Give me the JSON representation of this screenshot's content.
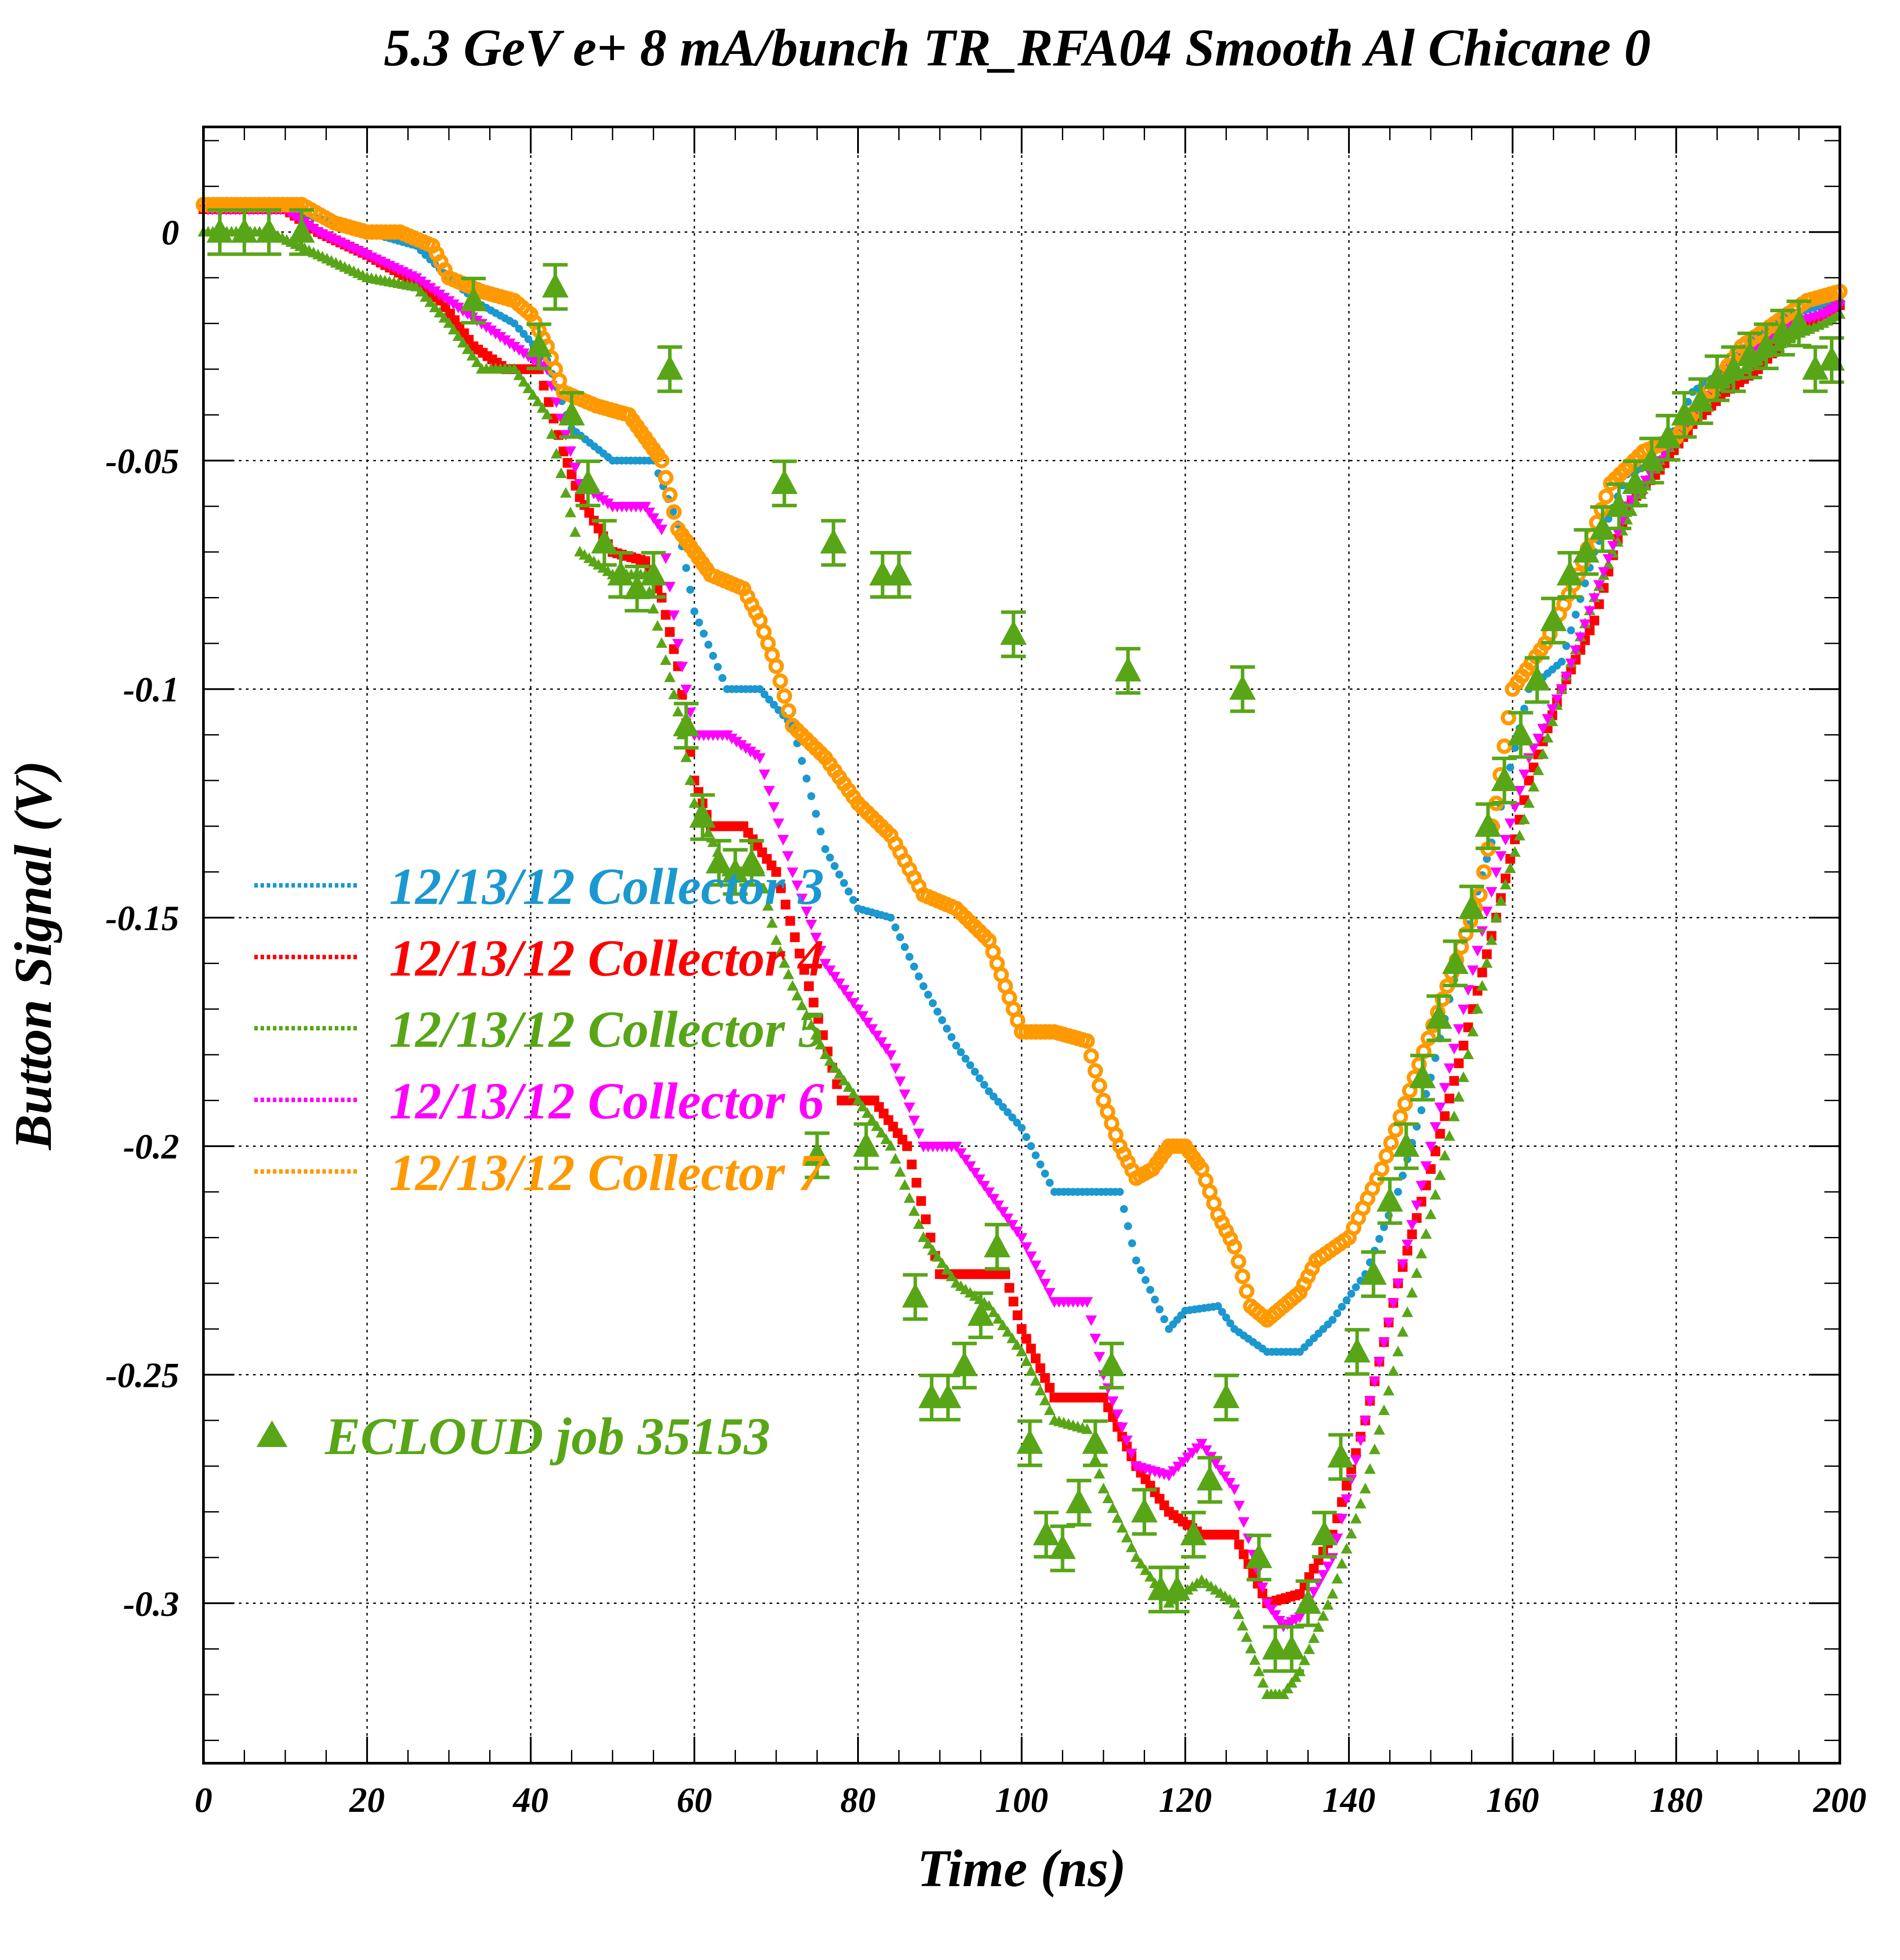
{
  "chart_data": {
    "type": "scatter",
    "title": "5.3 GeV e+ 8 mA/bunch  TR_RFA04 Smooth Al Chicane 0",
    "xlabel": "Time (ns)",
    "ylabel": "Button Signal (V)",
    "xlim": [
      0,
      200
    ],
    "ylim": [
      -0.335,
      0.023
    ],
    "x_ticks": [
      "0",
      "20",
      "40",
      "60",
      "80",
      "100",
      "120",
      "140",
      "160",
      "180",
      "200"
    ],
    "y_ticks": [
      "0",
      "-0.05",
      "-0.1",
      "-0.15",
      "-0.2",
      "-0.25",
      "-0.3"
    ],
    "grid": true,
    "legend_position": "left-middle",
    "series": [
      {
        "name": "12/13/12 Collector 3",
        "color": "#1b98d0",
        "marker": "dot",
        "x": [
          0,
          10,
          14,
          20,
          26,
          30,
          34,
          38,
          42,
          45,
          50,
          55,
          58,
          60,
          64,
          68,
          72,
          76,
          80,
          84,
          88,
          92,
          96,
          100,
          104,
          108,
          112,
          114,
          118,
          120,
          124,
          126,
          130,
          134,
          138,
          142,
          146,
          150,
          154,
          158,
          162,
          166,
          170,
          174,
          178,
          182,
          186,
          190,
          194,
          198,
          200
        ],
        "y": [
          0.005,
          0.005,
          0.003,
          0.0,
          -0.003,
          -0.01,
          -0.016,
          -0.02,
          -0.028,
          -0.043,
          -0.05,
          -0.05,
          -0.064,
          -0.083,
          -0.1,
          -0.1,
          -0.108,
          -0.135,
          -0.148,
          -0.15,
          -0.165,
          -0.178,
          -0.188,
          -0.196,
          -0.21,
          -0.21,
          -0.21,
          -0.225,
          -0.24,
          -0.236,
          -0.235,
          -0.24,
          -0.245,
          -0.245,
          -0.238,
          -0.228,
          -0.21,
          -0.185,
          -0.155,
          -0.13,
          -0.1,
          -0.094,
          -0.07,
          -0.053,
          -0.05,
          -0.035,
          -0.03,
          -0.022,
          -0.018,
          -0.016,
          -0.015
        ]
      },
      {
        "name": "12/13/12 Collector 4",
        "color": "#ff0000",
        "marker": "square",
        "x": [
          0,
          10,
          14,
          20,
          25,
          29,
          33,
          37,
          41,
          44,
          46,
          50,
          54,
          56,
          58,
          60,
          62,
          66,
          70,
          74,
          78,
          82,
          86,
          90,
          94,
          98,
          100,
          104,
          108,
          110,
          114,
          118,
          122,
          126,
          130,
          134,
          138,
          142,
          146,
          150,
          154,
          158,
          162,
          166,
          170,
          174,
          178,
          182,
          186,
          190,
          194,
          198,
          200
        ],
        "y": [
          0.005,
          0.005,
          0.0,
          -0.005,
          -0.01,
          -0.015,
          -0.025,
          -0.03,
          -0.03,
          -0.048,
          -0.058,
          -0.07,
          -0.072,
          -0.08,
          -0.095,
          -0.12,
          -0.13,
          -0.13,
          -0.14,
          -0.165,
          -0.19,
          -0.19,
          -0.2,
          -0.228,
          -0.228,
          -0.228,
          -0.24,
          -0.255,
          -0.255,
          -0.255,
          -0.27,
          -0.28,
          -0.285,
          -0.285,
          -0.3,
          -0.298,
          -0.285,
          -0.26,
          -0.23,
          -0.205,
          -0.178,
          -0.15,
          -0.12,
          -0.1,
          -0.085,
          -0.06,
          -0.052,
          -0.042,
          -0.035,
          -0.03,
          -0.022,
          -0.018,
          -0.016
        ]
      },
      {
        "name": "12/13/12 Collector 5",
        "color": "#58a618",
        "marker": "small-triangle",
        "x": [
          0,
          8,
          14,
          20,
          26,
          30,
          34,
          38,
          42,
          46,
          50,
          54,
          56,
          58,
          60,
          64,
          68,
          70,
          72,
          76,
          80,
          84,
          88,
          92,
          96,
          100,
          104,
          108,
          110,
          114,
          118,
          122,
          126,
          128,
          130,
          132,
          134,
          138,
          142,
          146,
          150,
          154,
          158,
          162,
          166,
          170,
          174,
          178,
          182,
          186,
          190,
          194,
          198,
          200
        ],
        "y": [
          0.0,
          0.0,
          -0.005,
          -0.01,
          -0.012,
          -0.02,
          -0.03,
          -0.03,
          -0.04,
          -0.07,
          -0.075,
          -0.075,
          -0.09,
          -0.105,
          -0.125,
          -0.14,
          -0.14,
          -0.155,
          -0.165,
          -0.18,
          -0.19,
          -0.2,
          -0.22,
          -0.23,
          -0.235,
          -0.245,
          -0.26,
          -0.262,
          -0.275,
          -0.29,
          -0.3,
          -0.295,
          -0.3,
          -0.31,
          -0.32,
          -0.32,
          -0.315,
          -0.298,
          -0.275,
          -0.245,
          -0.215,
          -0.185,
          -0.15,
          -0.125,
          -0.1,
          -0.08,
          -0.063,
          -0.05,
          -0.04,
          -0.033,
          -0.028,
          -0.023,
          -0.02,
          -0.018
        ]
      },
      {
        "name": "12/13/12 Collector 6",
        "color": "#ff00ff",
        "marker": "down-triangle",
        "x": [
          0,
          10,
          14,
          20,
          26,
          30,
          34,
          38,
          42,
          46,
          50,
          54,
          56,
          58,
          60,
          64,
          68,
          72,
          76,
          80,
          84,
          88,
          92,
          96,
          100,
          104,
          108,
          110,
          114,
          118,
          122,
          126,
          130,
          132,
          134,
          138,
          142,
          146,
          150,
          154,
          158,
          162,
          166,
          170,
          174,
          178,
          182,
          186,
          190,
          194,
          198,
          200
        ],
        "y": [
          0.005,
          0.005,
          0.0,
          -0.005,
          -0.01,
          -0.015,
          -0.02,
          -0.025,
          -0.03,
          -0.055,
          -0.06,
          -0.06,
          -0.065,
          -0.09,
          -0.11,
          -0.11,
          -0.115,
          -0.14,
          -0.16,
          -0.17,
          -0.18,
          -0.2,
          -0.2,
          -0.21,
          -0.22,
          -0.234,
          -0.234,
          -0.25,
          -0.27,
          -0.272,
          -0.265,
          -0.275,
          -0.3,
          -0.305,
          -0.303,
          -0.29,
          -0.26,
          -0.23,
          -0.2,
          -0.17,
          -0.14,
          -0.115,
          -0.1,
          -0.08,
          -0.06,
          -0.05,
          -0.04,
          -0.03,
          -0.025,
          -0.02,
          -0.018,
          -0.016
        ]
      },
      {
        "name": "12/13/12 Collector 7",
        "color": "#ff9900",
        "marker": "open-circle",
        "x": [
          0,
          12,
          16,
          20,
          24,
          28,
          30,
          34,
          38,
          40,
          42,
          44,
          48,
          52,
          54,
          56,
          58,
          60,
          62,
          66,
          68,
          70,
          72,
          76,
          80,
          84,
          88,
          92,
          96,
          98,
          100,
          104,
          108,
          110,
          112,
          114,
          116,
          118,
          120,
          122,
          124,
          126,
          128,
          130,
          132,
          134,
          136,
          140,
          144,
          148,
          152,
          156,
          158,
          160,
          164,
          168,
          172,
          176,
          180,
          184,
          188,
          192,
          196,
          200
        ],
        "y": [
          0.006,
          0.006,
          0.002,
          0.0,
          0.0,
          -0.003,
          -0.01,
          -0.013,
          -0.015,
          -0.018,
          -0.025,
          -0.035,
          -0.038,
          -0.04,
          -0.045,
          -0.05,
          -0.065,
          -0.07,
          -0.075,
          -0.078,
          -0.085,
          -0.095,
          -0.108,
          -0.115,
          -0.125,
          -0.132,
          -0.145,
          -0.148,
          -0.155,
          -0.165,
          -0.175,
          -0.175,
          -0.177,
          -0.19,
          -0.2,
          -0.207,
          -0.205,
          -0.2,
          -0.2,
          -0.205,
          -0.215,
          -0.222,
          -0.235,
          -0.238,
          -0.235,
          -0.232,
          -0.225,
          -0.22,
          -0.205,
          -0.185,
          -0.165,
          -0.145,
          -0.125,
          -0.1,
          -0.09,
          -0.075,
          -0.055,
          -0.048,
          -0.045,
          -0.035,
          -0.025,
          -0.02,
          -0.015,
          -0.013
        ]
      },
      {
        "name": "ECLOUD job 35153",
        "color": "#58a618",
        "marker": "big-triangle",
        "x": [
          2,
          5,
          8,
          12,
          33,
          41,
          43,
          45,
          47,
          49,
          51,
          53,
          55,
          57,
          59,
          61,
          63,
          65,
          67,
          71,
          75,
          77,
          81,
          83,
          85,
          87,
          89,
          91,
          93,
          95,
          97,
          99,
          101,
          103,
          105,
          107,
          109,
          111,
          113,
          115,
          117,
          119,
          121,
          123,
          125,
          127,
          129,
          131,
          133,
          135,
          137,
          139,
          141,
          143,
          145,
          147,
          149,
          151,
          153,
          155,
          157,
          159,
          161,
          163,
          165,
          167,
          169,
          171,
          173,
          175,
          177,
          179,
          181,
          183,
          185,
          187,
          189,
          191,
          193,
          195,
          197,
          199
        ],
        "y": [
          0.0,
          0.0,
          0.0,
          0.0,
          -0.015,
          -0.025,
          -0.012,
          -0.04,
          -0.055,
          -0.068,
          -0.075,
          -0.078,
          -0.075,
          -0.03,
          -0.108,
          -0.128,
          -0.138,
          -0.14,
          -0.138,
          -0.055,
          -0.202,
          -0.068,
          -0.2,
          -0.075,
          -0.075,
          -0.233,
          -0.255,
          -0.255,
          -0.248,
          -0.237,
          -0.222,
          -0.088,
          -0.265,
          -0.285,
          -0.288,
          -0.278,
          -0.265,
          -0.248,
          -0.096,
          -0.28,
          -0.297,
          -0.297,
          -0.285,
          -0.273,
          -0.255,
          -0.1,
          -0.29,
          -0.31,
          -0.31,
          -0.3,
          -0.285,
          -0.268,
          -0.245,
          -0.228,
          -0.212,
          -0.2,
          -0.185,
          -0.172,
          -0.16,
          -0.148,
          -0.13,
          -0.12,
          -0.11,
          -0.098,
          -0.085,
          -0.075,
          -0.07,
          -0.065,
          -0.06,
          -0.055,
          -0.05,
          -0.045,
          -0.04,
          -0.037,
          -0.032,
          -0.03,
          -0.027,
          -0.025,
          -0.022,
          -0.02,
          -0.03,
          -0.028
        ]
      }
    ]
  }
}
